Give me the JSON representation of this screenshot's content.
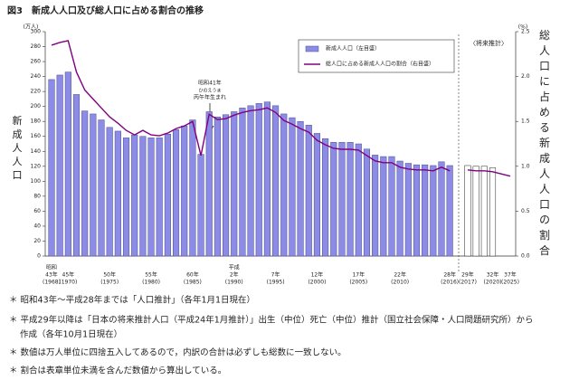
{
  "chart_data": {
    "type": "bar-line",
    "title": "図3　新成人人口及び総人口に占める割合の推移",
    "y_unit": "(万人)",
    "y_label": "新成人人口",
    "y2_unit": "(%)",
    "y2_label": "総人口に占める新成人人口の割合",
    "projection_label": "〈将来推計〉",
    "annotation": [
      "昭和41年",
      "ひのえうま",
      "丙午年生まれ"
    ],
    "categories": [
      "43年",
      null,
      "45年",
      null,
      null,
      null,
      null,
      "50年",
      null,
      null,
      null,
      null,
      "55年",
      null,
      null,
      null,
      null,
      "60年",
      null,
      null,
      null,
      null,
      "2年",
      null,
      null,
      null,
      null,
      "7年",
      null,
      null,
      null,
      null,
      "12年",
      null,
      null,
      null,
      null,
      "17年",
      null,
      null,
      null,
      null,
      "22年",
      null,
      null,
      null,
      null,
      null,
      "28年",
      "29年",
      null,
      null,
      "32年",
      "37年"
    ],
    "x_year_labels": [
      "(1968)",
      null,
      "(1970)",
      null,
      null,
      null,
      null,
      "(1975)",
      null,
      null,
      null,
      null,
      "(1980)",
      null,
      null,
      null,
      null,
      "(1985)",
      null,
      null,
      null,
      null,
      "(1990)",
      null,
      null,
      null,
      null,
      "(1995)",
      null,
      null,
      null,
      null,
      "(2000)",
      null,
      null,
      null,
      null,
      "(2005)",
      null,
      null,
      null,
      null,
      "(2010)",
      null,
      null,
      null,
      null,
      null,
      "(2016)",
      "(2017)",
      null,
      null,
      "(2020)",
      "(2025)"
    ],
    "x_era_labels": [
      "昭和",
      null,
      null,
      null,
      null,
      null,
      null,
      null,
      null,
      null,
      null,
      null,
      null,
      null,
      null,
      null,
      null,
      null,
      null,
      null,
      null,
      null,
      "平成",
      null,
      null,
      null,
      null,
      null,
      null,
      null,
      null,
      null,
      null,
      null,
      null,
      null,
      null,
      null,
      null,
      null,
      null,
      null,
      null,
      null,
      null,
      null,
      null,
      null,
      null,
      null,
      null,
      null,
      null,
      null
    ],
    "series": [
      {
        "name": "新成人人口（左目盛）",
        "color": "#8c8ce6",
        "projected_color": "#ffffff",
        "values": [
          236,
          242,
          246,
          216,
          194,
          190,
          182,
          172,
          167,
          158,
          162,
          160,
          158,
          158,
          163,
          169,
          174,
          182,
          136,
          193,
          186,
          189,
          193,
          198,
          201,
          204,
          206,
          201,
          190,
          185,
          180,
          175,
          164,
          157,
          152,
          152,
          152,
          150,
          143,
          135,
          133,
          133,
          127,
          124,
          122,
          122,
          121,
          126,
          121,
          121,
          120,
          120,
          118,
          null
        ]
      },
      {
        "name": "総人口に占める新成人人口の割合（右目盛）",
        "color": "#800080",
        "axis": "y2",
        "values": [
          2.35,
          2.38,
          2.4,
          2.05,
          1.85,
          1.75,
          1.65,
          1.55,
          1.48,
          1.4,
          1.35,
          1.4,
          1.35,
          1.34,
          1.37,
          1.42,
          1.45,
          1.5,
          1.12,
          1.58,
          1.52,
          1.53,
          1.57,
          1.6,
          1.62,
          1.63,
          1.65,
          1.6,
          1.51,
          1.47,
          1.42,
          1.38,
          1.29,
          1.24,
          1.2,
          1.19,
          1.19,
          1.18,
          1.12,
          1.06,
          1.04,
          1.04,
          0.99,
          0.97,
          0.96,
          0.96,
          0.95,
          0.99,
          0.95,
          0.96,
          0.95,
          0.95,
          0.94,
          0.89
        ]
      }
    ],
    "ylim": [
      0,
      300
    ],
    "yticks": [
      0,
      20,
      40,
      60,
      80,
      100,
      120,
      140,
      160,
      180,
      200,
      220,
      240,
      260,
      280,
      300
    ],
    "y2lim": [
      0,
      2.5
    ],
    "y2ticks": [
      {
        "value": 0,
        "label": "0.0"
      },
      0.5,
      {
        "value": 1,
        "label": "1.0"
      },
      1.5,
      {
        "value": 2,
        "label": "2.0"
      },
      2.5
    ]
  },
  "notes": [
    "＊ 昭和43年～平成28年までは「人口推計」（各年1月1日現在）",
    "＊ 平成29年以降は「日本の将来推計人口（平成24年1月推計）」出生（中位）死亡（中位）推計（国立社会保障・人口問題研究所）から",
    "作成（各年10月1日現在）",
    "＊ 数値は万人単位に四捨五入してあるので，内訳の合計は必ずしも総数に一致しない。",
    "＊ 割合は表章単位未満を含んだ数値から算出している。"
  ]
}
